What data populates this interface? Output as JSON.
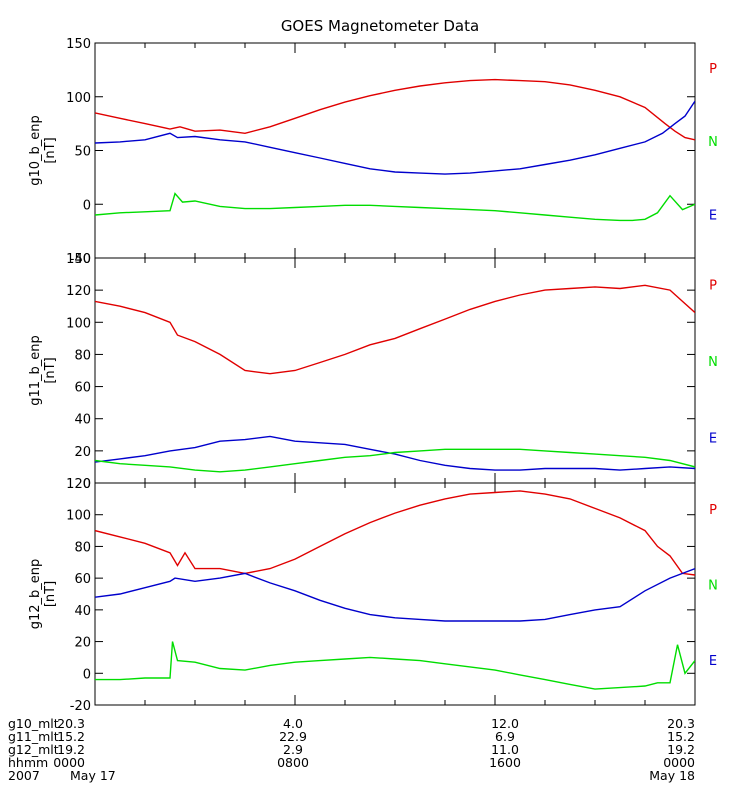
{
  "title": "GOES Magnetometer Data",
  "colors": {
    "P": "#e00000",
    "N": "#00dd00",
    "E": "#0000cc",
    "axis": "#000000"
  },
  "chart_data": [
    {
      "type": "line",
      "ylabel": "g10_b_enp",
      "unit": "[nT]",
      "ylim": [
        -50,
        150
      ],
      "yticks": [
        -50,
        0,
        50,
        100,
        150
      ],
      "xlim": [
        0,
        24
      ],
      "legend": [
        "P",
        "N",
        "E"
      ],
      "series": [
        {
          "name": "P",
          "color": "#e00000",
          "x": [
            0,
            1,
            2,
            3,
            3.4,
            4,
            5,
            6,
            7,
            8,
            9,
            10,
            11,
            12,
            13,
            14,
            15,
            16,
            17,
            18,
            19,
            20,
            21,
            22,
            22.8,
            23.2,
            23.6,
            24
          ],
          "y": [
            85,
            80,
            75,
            70,
            72,
            68,
            69,
            66,
            72,
            80,
            88,
            95,
            101,
            106,
            110,
            113,
            115,
            116,
            115,
            114,
            111,
            106,
            100,
            90,
            75,
            68,
            62,
            60
          ]
        },
        {
          "name": "E",
          "color": "#0000cc",
          "x": [
            0,
            1,
            2,
            3,
            3.3,
            4,
            5,
            6,
            7,
            8,
            9,
            10,
            11,
            12,
            13,
            14,
            15,
            16,
            17,
            18,
            19,
            20,
            21,
            22,
            22.7,
            23.2,
            23.6,
            24
          ],
          "y": [
            57,
            58,
            60,
            66,
            62,
            63,
            60,
            58,
            53,
            48,
            43,
            38,
            33,
            30,
            29,
            28,
            29,
            31,
            33,
            37,
            41,
            46,
            52,
            58,
            66,
            75,
            82,
            96
          ]
        },
        {
          "name": "N",
          "color": "#00dd00",
          "x": [
            0,
            1,
            2,
            3,
            3.2,
            3.5,
            4,
            5,
            6,
            7,
            8,
            9,
            10,
            11,
            12,
            13,
            14,
            15,
            16,
            17,
            18,
            19,
            20,
            21,
            21.5,
            22,
            22.5,
            23,
            23.5,
            24
          ],
          "y": [
            -10,
            -8,
            -7,
            -6,
            10,
            2,
            3,
            -2,
            -4,
            -4,
            -3,
            -2,
            -1,
            -1,
            -2,
            -3,
            -4,
            -5,
            -6,
            -8,
            -10,
            -12,
            -14,
            -15,
            -15,
            -14,
            -8,
            8,
            -5,
            0
          ]
        }
      ]
    },
    {
      "type": "line",
      "ylabel": "g11_b_enp",
      "unit": "[nT]",
      "ylim": [
        0,
        140
      ],
      "yticks": [
        0,
        20,
        40,
        60,
        80,
        100,
        120,
        140
      ],
      "xlim": [
        0,
        24
      ],
      "legend": [
        "P",
        "N",
        "E"
      ],
      "series": [
        {
          "name": "P",
          "color": "#e00000",
          "x": [
            0,
            1,
            2,
            3,
            3.3,
            4,
            5,
            6,
            7,
            8,
            9,
            10,
            11,
            12,
            13,
            14,
            15,
            16,
            17,
            18,
            19,
            20,
            21,
            22,
            23,
            23.5,
            24
          ],
          "y": [
            113,
            110,
            106,
            100,
            92,
            88,
            80,
            70,
            68,
            70,
            75,
            80,
            86,
            90,
            96,
            102,
            108,
            113,
            117,
            120,
            121,
            122,
            121,
            123,
            120,
            113,
            106
          ]
        },
        {
          "name": "E",
          "color": "#0000cc",
          "x": [
            0,
            1,
            2,
            3,
            4,
            5,
            6,
            7,
            8,
            9,
            10,
            11,
            12,
            13,
            14,
            15,
            16,
            17,
            18,
            19,
            20,
            21,
            22,
            23,
            24
          ],
          "y": [
            13,
            15,
            17,
            20,
            22,
            26,
            27,
            29,
            26,
            25,
            24,
            21,
            18,
            14,
            11,
            9,
            8,
            8,
            9,
            9,
            9,
            8,
            9,
            10,
            9
          ]
        },
        {
          "name": "N",
          "color": "#00dd00",
          "x": [
            0,
            1,
            2,
            3,
            4,
            5,
            6,
            7,
            8,
            9,
            10,
            11,
            12,
            13,
            14,
            15,
            16,
            17,
            18,
            19,
            20,
            21,
            22,
            23,
            24
          ],
          "y": [
            14,
            12,
            11,
            10,
            8,
            7,
            8,
            10,
            12,
            14,
            16,
            17,
            19,
            20,
            21,
            21,
            21,
            21,
            20,
            19,
            18,
            17,
            16,
            14,
            10
          ]
        }
      ]
    },
    {
      "type": "line",
      "ylabel": "g12_b_enp",
      "unit": "[nT]",
      "ylim": [
        -20,
        120
      ],
      "yticks": [
        -20,
        0,
        20,
        40,
        60,
        80,
        100,
        120
      ],
      "xlim": [
        0,
        24
      ],
      "legend": [
        "P",
        "N",
        "E"
      ],
      "series": [
        {
          "name": "P",
          "color": "#e00000",
          "x": [
            0,
            1,
            2,
            3,
            3.3,
            3.6,
            4,
            5,
            6,
            7,
            8,
            9,
            10,
            11,
            12,
            13,
            14,
            15,
            16,
            17,
            18,
            19,
            20,
            21,
            22,
            22.5,
            23,
            23.5,
            24
          ],
          "y": [
            90,
            86,
            82,
            76,
            68,
            76,
            66,
            66,
            63,
            66,
            72,
            80,
            88,
            95,
            101,
            106,
            110,
            113,
            114,
            115,
            113,
            110,
            104,
            98,
            90,
            80,
            74,
            63,
            62
          ]
        },
        {
          "name": "E",
          "color": "#0000cc",
          "x": [
            0,
            1,
            2,
            3,
            3.2,
            4,
            5,
            6,
            7,
            8,
            9,
            10,
            11,
            12,
            13,
            14,
            15,
            16,
            17,
            18,
            19,
            20,
            21,
            22,
            23,
            24
          ],
          "y": [
            48,
            50,
            54,
            58,
            60,
            58,
            60,
            63,
            57,
            52,
            46,
            41,
            37,
            35,
            34,
            33,
            33,
            33,
            33,
            34,
            37,
            40,
            42,
            52,
            60,
            66
          ]
        },
        {
          "name": "N",
          "color": "#00dd00",
          "x": [
            0,
            1,
            2,
            3,
            3.1,
            3.3,
            4,
            5,
            6,
            7,
            8,
            9,
            10,
            11,
            12,
            13,
            14,
            15,
            16,
            17,
            18,
            19,
            20,
            21,
            22,
            22.5,
            23,
            23.3,
            23.6,
            24
          ],
          "y": [
            -4,
            -4,
            -3,
            -3,
            20,
            8,
            7,
            3,
            2,
            5,
            7,
            8,
            9,
            10,
            9,
            8,
            6,
            4,
            2,
            -1,
            -4,
            -7,
            -10,
            -9,
            -8,
            -6,
            -6,
            18,
            0,
            8
          ]
        }
      ]
    }
  ],
  "xaxis": {
    "labels": [
      "g10_mlt",
      "g11_mlt",
      "g12_mlt",
      "hhmm",
      "2007"
    ],
    "columns": [
      {
        "values": [
          "20.3",
          "15.2",
          "19.2",
          "0000",
          "May 17"
        ]
      },
      {
        "values": [
          "4.0",
          "22.9",
          "2.9",
          "0800",
          ""
        ]
      },
      {
        "values": [
          "12.0",
          "6.9",
          "11.0",
          "1600",
          ""
        ]
      },
      {
        "values": [
          "20.3",
          "15.2",
          "19.2",
          "0000",
          "May 18"
        ]
      }
    ]
  }
}
